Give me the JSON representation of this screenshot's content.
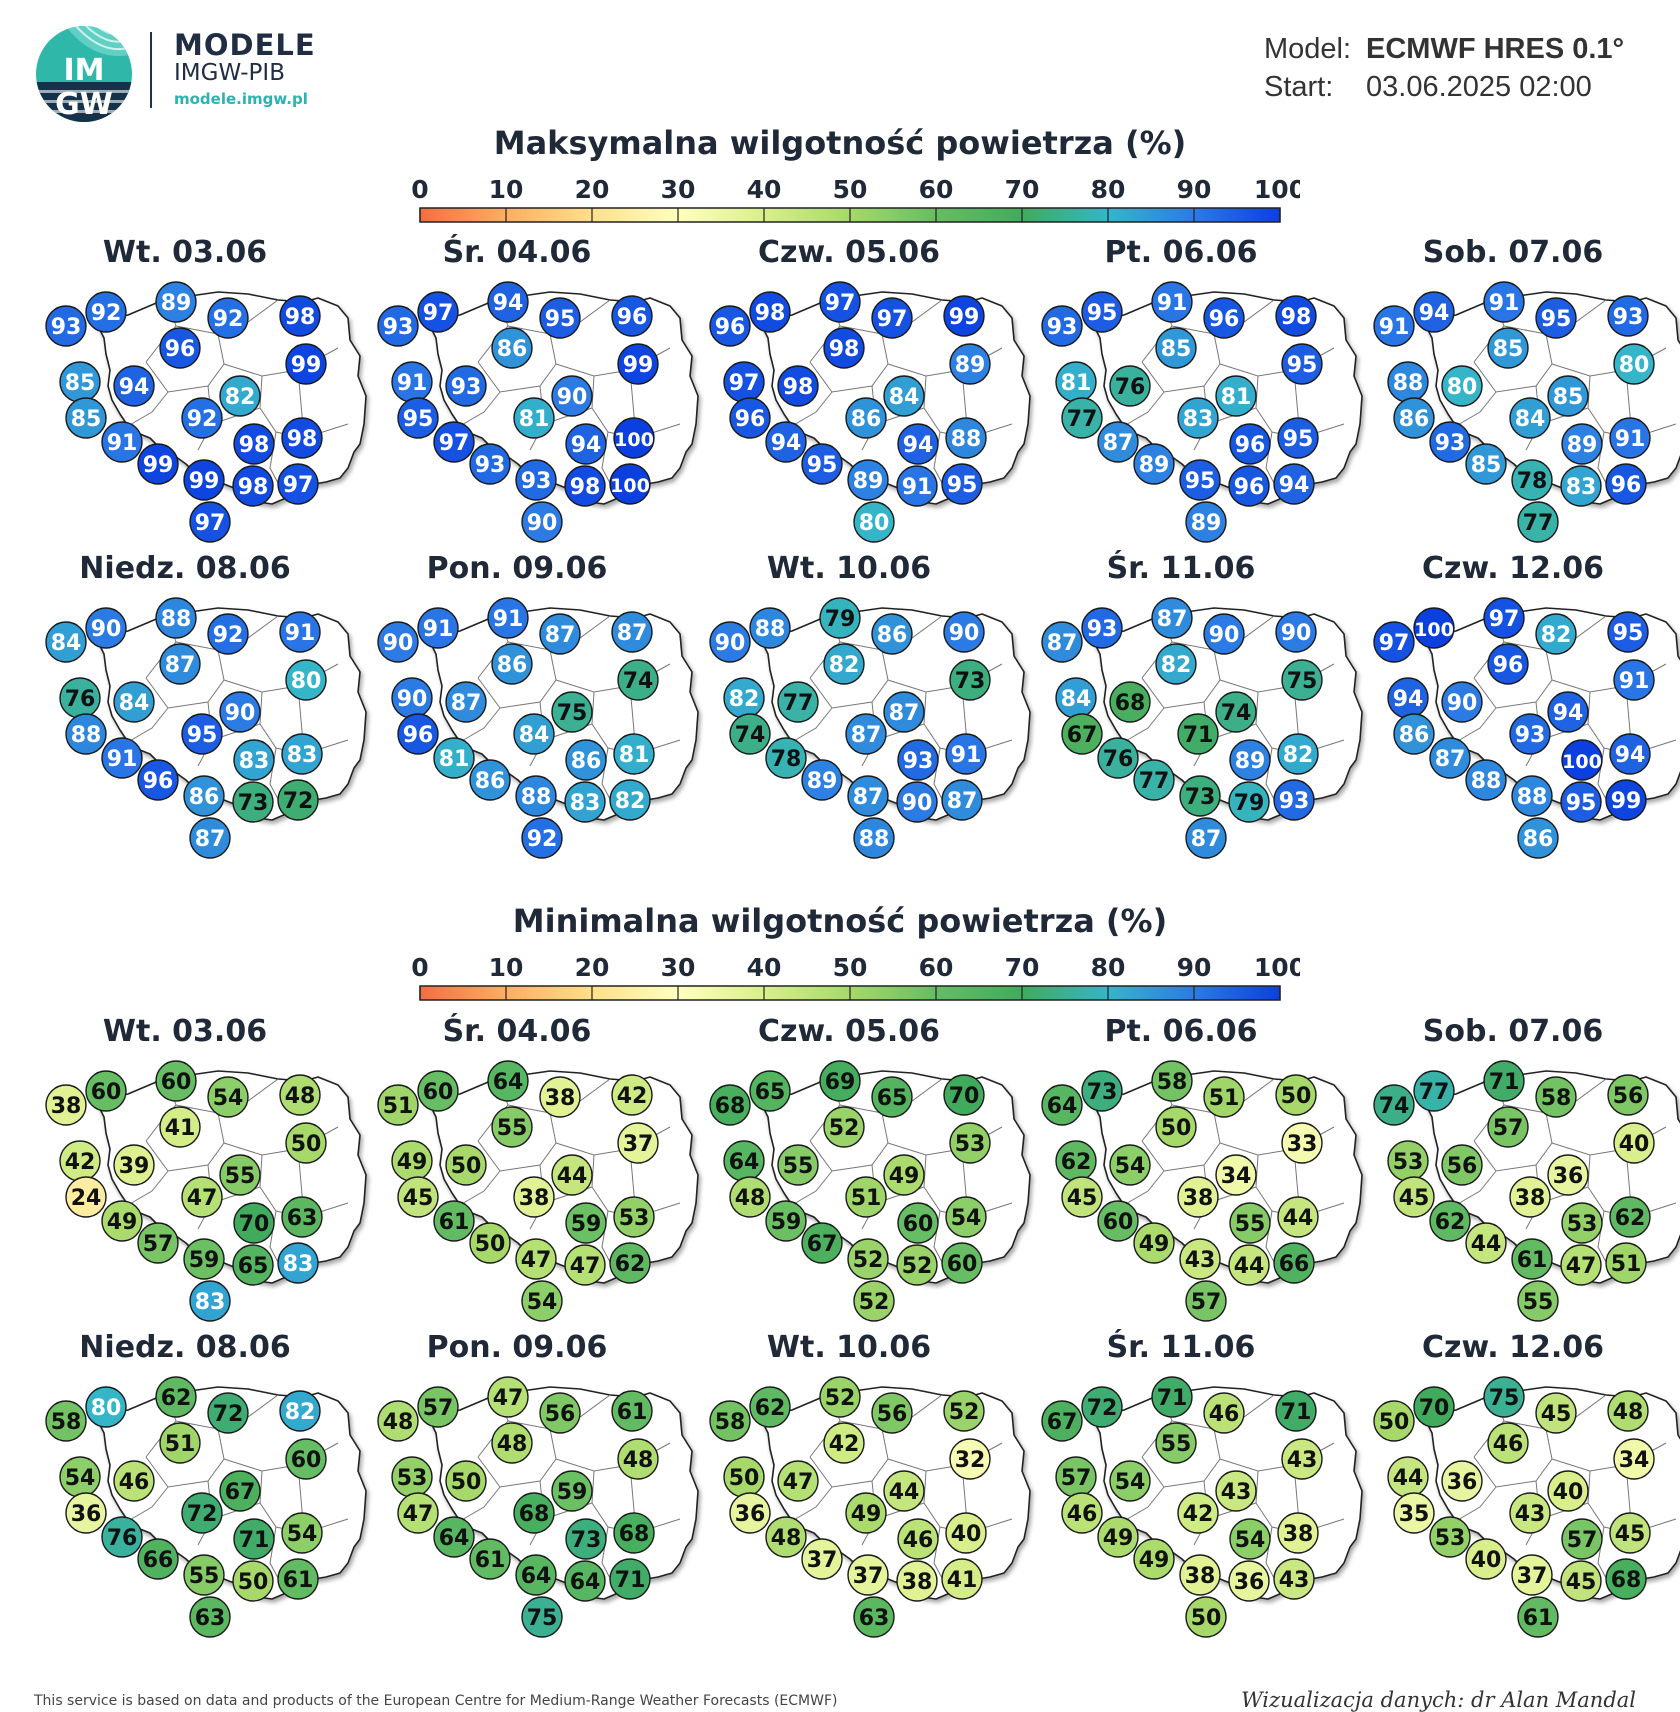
{
  "brand": {
    "logo_text_top": "IM",
    "logo_text_bottom": "GW",
    "name": "MODELE",
    "org": "IMGW-PIB",
    "url": "modele.imgw.pl"
  },
  "meta": {
    "model_label": "Model:",
    "model_value": "ECMWF HRES 0.1°",
    "start_label": "Start:",
    "start_value": "03.06.2025 02:00"
  },
  "colorbar": {
    "ticks": [
      "0",
      "10",
      "20",
      "30",
      "40",
      "50",
      "60",
      "70",
      "80",
      "90",
      "100"
    ],
    "colors": [
      "#f46d43",
      "#fdae61",
      "#fee08b",
      "#ffffbf",
      "#d9ef8b",
      "#a6d96a",
      "#66bd63",
      "#41ab5d",
      "#35b5c8",
      "#2c7be5",
      "#0b3fe0"
    ]
  },
  "footer": {
    "source": "This service is based on data and products of the European Centre for Medium-Range Weather Forecasts (ECMWF)",
    "credit": "Wizualizacja danych: dr Alan Mandal"
  },
  "chart_data": [
    {
      "type": "map",
      "title": "Maksymalna wilgotność powietrza (%)",
      "days": [
        {
          "label": "Wt. 03.06",
          "values": [
            93,
            92,
            89,
            92,
            98,
            99,
            85,
            96,
            94,
            82,
            85,
            92,
            91,
            98,
            98,
            99,
            99,
            98,
            97,
            97
          ]
        },
        {
          "label": "Śr. 04.06",
          "values": [
            93,
            97,
            94,
            95,
            96,
            99,
            91,
            86,
            93,
            90,
            95,
            81,
            97,
            94,
            100,
            93,
            93,
            98,
            100,
            90
          ]
        },
        {
          "label": "Czw. 05.06",
          "values": [
            96,
            98,
            97,
            97,
            99,
            89,
            97,
            98,
            98,
            84,
            96,
            86,
            94,
            94,
            88,
            95,
            89,
            91,
            95,
            80
          ]
        },
        {
          "label": "Pt. 06.06",
          "values": [
            93,
            95,
            91,
            96,
            98,
            95,
            81,
            85,
            76,
            81,
            77,
            83,
            87,
            96,
            95,
            89,
            95,
            96,
            94,
            89
          ]
        },
        {
          "label": "Sob. 07.06",
          "values": [
            91,
            94,
            91,
            95,
            93,
            80,
            88,
            85,
            80,
            85,
            86,
            84,
            93,
            89,
            91,
            85,
            78,
            83,
            96,
            77
          ]
        },
        {
          "label": "Niedz. 08.06",
          "values": [
            84,
            90,
            88,
            92,
            91,
            80,
            76,
            87,
            84,
            90,
            88,
            95,
            91,
            83,
            83,
            96,
            86,
            73,
            72,
            87
          ]
        },
        {
          "label": "Pon. 09.06",
          "values": [
            90,
            91,
            91,
            87,
            87,
            74,
            90,
            86,
            87,
            75,
            96,
            84,
            81,
            86,
            81,
            86,
            88,
            83,
            82,
            92
          ]
        },
        {
          "label": "Wt. 10.06",
          "values": [
            90,
            88,
            79,
            86,
            90,
            73,
            82,
            82,
            77,
            87,
            74,
            87,
            78,
            93,
            91,
            89,
            87,
            90,
            87,
            88
          ]
        },
        {
          "label": "Śr. 11.06",
          "values": [
            87,
            93,
            87,
            90,
            90,
            75,
            84,
            82,
            68,
            74,
            67,
            71,
            76,
            89,
            82,
            77,
            73,
            79,
            93,
            87
          ]
        },
        {
          "label": "Czw. 12.06",
          "values": [
            97,
            100,
            97,
            82,
            95,
            91,
            94,
            96,
            90,
            94,
            86,
            93,
            87,
            100,
            94,
            88,
            88,
            95,
            99,
            86
          ]
        }
      ]
    },
    {
      "type": "map",
      "title": "Minimalna wilgotność powietrza (%)",
      "days": [
        {
          "label": "Wt. 03.06",
          "values": [
            38,
            60,
            60,
            54,
            48,
            50,
            42,
            41,
            39,
            55,
            24,
            47,
            49,
            70,
            63,
            57,
            59,
            65,
            83,
            83
          ]
        },
        {
          "label": "Śr. 04.06",
          "values": [
            51,
            60,
            64,
            38,
            42,
            37,
            49,
            55,
            50,
            44,
            45,
            38,
            61,
            59,
            53,
            50,
            47,
            47,
            62,
            54
          ]
        },
        {
          "label": "Czw. 05.06",
          "values": [
            68,
            65,
            69,
            65,
            70,
            53,
            64,
            52,
            55,
            49,
            48,
            51,
            59,
            60,
            54,
            67,
            52,
            52,
            60,
            52
          ]
        },
        {
          "label": "Pt. 06.06",
          "values": [
            64,
            73,
            58,
            51,
            50,
            33,
            62,
            50,
            54,
            34,
            45,
            38,
            60,
            55,
            44,
            49,
            43,
            44,
            66,
            57
          ]
        },
        {
          "label": "Sob. 07.06",
          "values": [
            74,
            77,
            71,
            58,
            56,
            40,
            53,
            57,
            56,
            36,
            45,
            38,
            62,
            53,
            62,
            44,
            61,
            47,
            51,
            55
          ]
        },
        {
          "label": "Niedz. 08.06",
          "values": [
            58,
            80,
            62,
            72,
            82,
            60,
            54,
            51,
            46,
            67,
            36,
            72,
            76,
            71,
            54,
            66,
            55,
            50,
            61,
            63
          ]
        },
        {
          "label": "Pon. 09.06",
          "values": [
            48,
            57,
            47,
            56,
            61,
            48,
            53,
            48,
            50,
            59,
            47,
            68,
            64,
            73,
            68,
            61,
            64,
            64,
            71,
            75
          ]
        },
        {
          "label": "Wt. 10.06",
          "values": [
            58,
            62,
            52,
            56,
            52,
            32,
            50,
            42,
            47,
            44,
            36,
            49,
            48,
            46,
            40,
            37,
            37,
            38,
            41,
            63
          ]
        },
        {
          "label": "Śr. 11.06",
          "values": [
            67,
            72,
            71,
            46,
            71,
            43,
            57,
            55,
            54,
            43,
            46,
            42,
            49,
            54,
            38,
            49,
            38,
            36,
            43,
            50
          ]
        },
        {
          "label": "Czw. 12.06",
          "values": [
            50,
            70,
            75,
            45,
            48,
            34,
            44,
            46,
            36,
            40,
            35,
            43,
            53,
            57,
            45,
            40,
            37,
            45,
            68,
            61
          ]
        }
      ]
    }
  ]
}
